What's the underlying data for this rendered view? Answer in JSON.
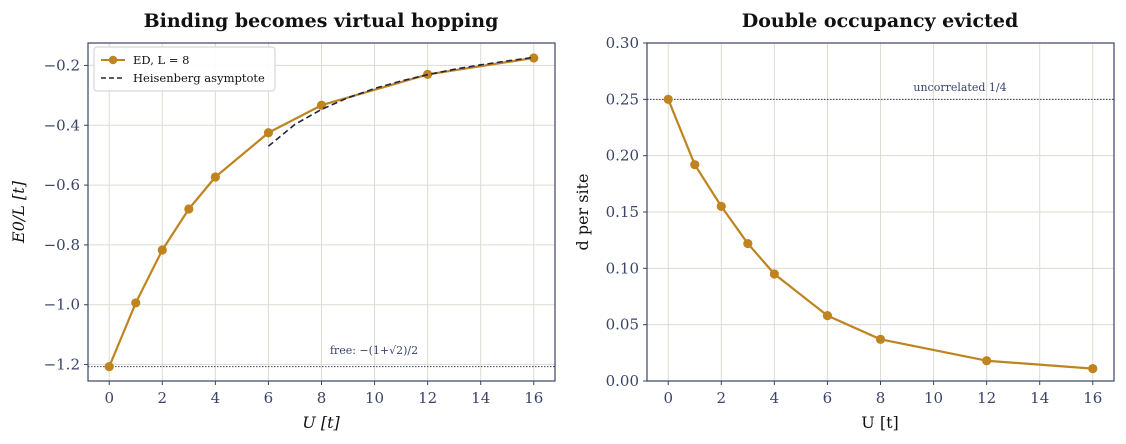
{
  "chart_data": [
    {
      "type": "line",
      "title": "Binding becomes virtual hopping",
      "xlabel": "U  [t]",
      "ylabel": "E0/L  [t]",
      "xlim": [
        -0.8,
        16.8
      ],
      "ylim": [
        -1.255,
        -0.125
      ],
      "xticks": [
        0,
        2,
        4,
        6,
        8,
        10,
        12,
        14,
        16
      ],
      "yticks": [
        -1.2,
        -1.0,
        -0.8,
        -0.6,
        -0.4,
        -0.2
      ],
      "grid": true,
      "legend": "top-left",
      "series": [
        {
          "name": "ED, L = 8",
          "style": "solid-markers",
          "color": "#bf8420",
          "x": [
            0,
            1,
            2,
            3,
            4,
            6,
            8,
            12,
            16
          ],
          "y": [
            -1.207,
            -0.994,
            -0.817,
            -0.68,
            -0.573,
            -0.425,
            -0.333,
            -0.23,
            -0.175
          ]
        },
        {
          "name": "Heisenberg asymptote",
          "style": "dashed",
          "color": "#1e2640",
          "x": [
            6,
            7,
            8,
            9,
            10,
            11,
            12,
            13,
            14,
            15,
            16
          ],
          "y": [
            -0.47,
            -0.397,
            -0.347,
            -0.308,
            -0.277,
            -0.252,
            -0.231,
            -0.213,
            -0.198,
            -0.185,
            -0.173
          ]
        }
      ],
      "reference_line": {
        "y": -1.207,
        "label": "free: −(1+√2)/2",
        "color": "#3a4368"
      }
    },
    {
      "type": "line",
      "title": "Double occupancy evicted",
      "xlabel": "U  [t]",
      "ylabel": "d per site",
      "xlim": [
        -0.8,
        16.8
      ],
      "ylim": [
        0.0,
        0.3
      ],
      "xticks": [
        0,
        2,
        4,
        6,
        8,
        10,
        12,
        14,
        16
      ],
      "yticks": [
        0.0,
        0.05,
        0.1,
        0.15,
        0.2,
        0.25,
        0.3
      ],
      "grid": true,
      "series": [
        {
          "style": "solid-markers",
          "color": "#bf8420",
          "x": [
            0,
            1,
            2,
            3,
            4,
            6,
            8,
            12,
            16
          ],
          "y": [
            0.25,
            0.192,
            0.155,
            0.122,
            0.095,
            0.058,
            0.037,
            0.018,
            0.011
          ]
        }
      ],
      "reference_line": {
        "y": 0.25,
        "label": "uncorrelated 1/4",
        "color": "#3a4368"
      }
    }
  ]
}
